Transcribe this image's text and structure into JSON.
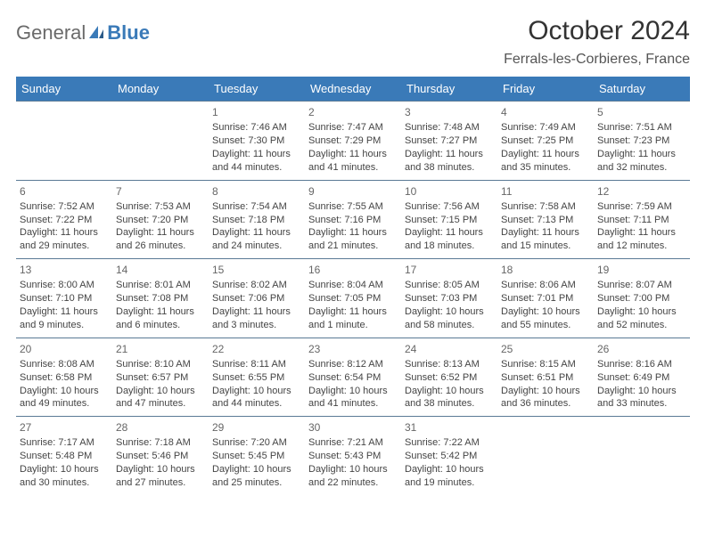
{
  "logo": {
    "general": "General",
    "blue": "Blue"
  },
  "title": "October 2024",
  "location": "Ferrals-les-Corbieres, France",
  "colors": {
    "header_bg": "#3a7ab8",
    "header_text": "#ffffff",
    "divider": "#5a7a95",
    "body_text": "#444444",
    "title_text": "#333333"
  },
  "weekdays": [
    "Sunday",
    "Monday",
    "Tuesday",
    "Wednesday",
    "Thursday",
    "Friday",
    "Saturday"
  ],
  "blanks_before": 2,
  "blanks_after": 2,
  "days": [
    {
      "n": "1",
      "sunrise": "Sunrise: 7:46 AM",
      "sunset": "Sunset: 7:30 PM",
      "dl1": "Daylight: 11 hours",
      "dl2": "and 44 minutes."
    },
    {
      "n": "2",
      "sunrise": "Sunrise: 7:47 AM",
      "sunset": "Sunset: 7:29 PM",
      "dl1": "Daylight: 11 hours",
      "dl2": "and 41 minutes."
    },
    {
      "n": "3",
      "sunrise": "Sunrise: 7:48 AM",
      "sunset": "Sunset: 7:27 PM",
      "dl1": "Daylight: 11 hours",
      "dl2": "and 38 minutes."
    },
    {
      "n": "4",
      "sunrise": "Sunrise: 7:49 AM",
      "sunset": "Sunset: 7:25 PM",
      "dl1": "Daylight: 11 hours",
      "dl2": "and 35 minutes."
    },
    {
      "n": "5",
      "sunrise": "Sunrise: 7:51 AM",
      "sunset": "Sunset: 7:23 PM",
      "dl1": "Daylight: 11 hours",
      "dl2": "and 32 minutes."
    },
    {
      "n": "6",
      "sunrise": "Sunrise: 7:52 AM",
      "sunset": "Sunset: 7:22 PM",
      "dl1": "Daylight: 11 hours",
      "dl2": "and 29 minutes."
    },
    {
      "n": "7",
      "sunrise": "Sunrise: 7:53 AM",
      "sunset": "Sunset: 7:20 PM",
      "dl1": "Daylight: 11 hours",
      "dl2": "and 26 minutes."
    },
    {
      "n": "8",
      "sunrise": "Sunrise: 7:54 AM",
      "sunset": "Sunset: 7:18 PM",
      "dl1": "Daylight: 11 hours",
      "dl2": "and 24 minutes."
    },
    {
      "n": "9",
      "sunrise": "Sunrise: 7:55 AM",
      "sunset": "Sunset: 7:16 PM",
      "dl1": "Daylight: 11 hours",
      "dl2": "and 21 minutes."
    },
    {
      "n": "10",
      "sunrise": "Sunrise: 7:56 AM",
      "sunset": "Sunset: 7:15 PM",
      "dl1": "Daylight: 11 hours",
      "dl2": "and 18 minutes."
    },
    {
      "n": "11",
      "sunrise": "Sunrise: 7:58 AM",
      "sunset": "Sunset: 7:13 PM",
      "dl1": "Daylight: 11 hours",
      "dl2": "and 15 minutes."
    },
    {
      "n": "12",
      "sunrise": "Sunrise: 7:59 AM",
      "sunset": "Sunset: 7:11 PM",
      "dl1": "Daylight: 11 hours",
      "dl2": "and 12 minutes."
    },
    {
      "n": "13",
      "sunrise": "Sunrise: 8:00 AM",
      "sunset": "Sunset: 7:10 PM",
      "dl1": "Daylight: 11 hours",
      "dl2": "and 9 minutes."
    },
    {
      "n": "14",
      "sunrise": "Sunrise: 8:01 AM",
      "sunset": "Sunset: 7:08 PM",
      "dl1": "Daylight: 11 hours",
      "dl2": "and 6 minutes."
    },
    {
      "n": "15",
      "sunrise": "Sunrise: 8:02 AM",
      "sunset": "Sunset: 7:06 PM",
      "dl1": "Daylight: 11 hours",
      "dl2": "and 3 minutes."
    },
    {
      "n": "16",
      "sunrise": "Sunrise: 8:04 AM",
      "sunset": "Sunset: 7:05 PM",
      "dl1": "Daylight: 11 hours",
      "dl2": "and 1 minute."
    },
    {
      "n": "17",
      "sunrise": "Sunrise: 8:05 AM",
      "sunset": "Sunset: 7:03 PM",
      "dl1": "Daylight: 10 hours",
      "dl2": "and 58 minutes."
    },
    {
      "n": "18",
      "sunrise": "Sunrise: 8:06 AM",
      "sunset": "Sunset: 7:01 PM",
      "dl1": "Daylight: 10 hours",
      "dl2": "and 55 minutes."
    },
    {
      "n": "19",
      "sunrise": "Sunrise: 8:07 AM",
      "sunset": "Sunset: 7:00 PM",
      "dl1": "Daylight: 10 hours",
      "dl2": "and 52 minutes."
    },
    {
      "n": "20",
      "sunrise": "Sunrise: 8:08 AM",
      "sunset": "Sunset: 6:58 PM",
      "dl1": "Daylight: 10 hours",
      "dl2": "and 49 minutes."
    },
    {
      "n": "21",
      "sunrise": "Sunrise: 8:10 AM",
      "sunset": "Sunset: 6:57 PM",
      "dl1": "Daylight: 10 hours",
      "dl2": "and 47 minutes."
    },
    {
      "n": "22",
      "sunrise": "Sunrise: 8:11 AM",
      "sunset": "Sunset: 6:55 PM",
      "dl1": "Daylight: 10 hours",
      "dl2": "and 44 minutes."
    },
    {
      "n": "23",
      "sunrise": "Sunrise: 8:12 AM",
      "sunset": "Sunset: 6:54 PM",
      "dl1": "Daylight: 10 hours",
      "dl2": "and 41 minutes."
    },
    {
      "n": "24",
      "sunrise": "Sunrise: 8:13 AM",
      "sunset": "Sunset: 6:52 PM",
      "dl1": "Daylight: 10 hours",
      "dl2": "and 38 minutes."
    },
    {
      "n": "25",
      "sunrise": "Sunrise: 8:15 AM",
      "sunset": "Sunset: 6:51 PM",
      "dl1": "Daylight: 10 hours",
      "dl2": "and 36 minutes."
    },
    {
      "n": "26",
      "sunrise": "Sunrise: 8:16 AM",
      "sunset": "Sunset: 6:49 PM",
      "dl1": "Daylight: 10 hours",
      "dl2": "and 33 minutes."
    },
    {
      "n": "27",
      "sunrise": "Sunrise: 7:17 AM",
      "sunset": "Sunset: 5:48 PM",
      "dl1": "Daylight: 10 hours",
      "dl2": "and 30 minutes."
    },
    {
      "n": "28",
      "sunrise": "Sunrise: 7:18 AM",
      "sunset": "Sunset: 5:46 PM",
      "dl1": "Daylight: 10 hours",
      "dl2": "and 27 minutes."
    },
    {
      "n": "29",
      "sunrise": "Sunrise: 7:20 AM",
      "sunset": "Sunset: 5:45 PM",
      "dl1": "Daylight: 10 hours",
      "dl2": "and 25 minutes."
    },
    {
      "n": "30",
      "sunrise": "Sunrise: 7:21 AM",
      "sunset": "Sunset: 5:43 PM",
      "dl1": "Daylight: 10 hours",
      "dl2": "and 22 minutes."
    },
    {
      "n": "31",
      "sunrise": "Sunrise: 7:22 AM",
      "sunset": "Sunset: 5:42 PM",
      "dl1": "Daylight: 10 hours",
      "dl2": "and 19 minutes."
    }
  ]
}
